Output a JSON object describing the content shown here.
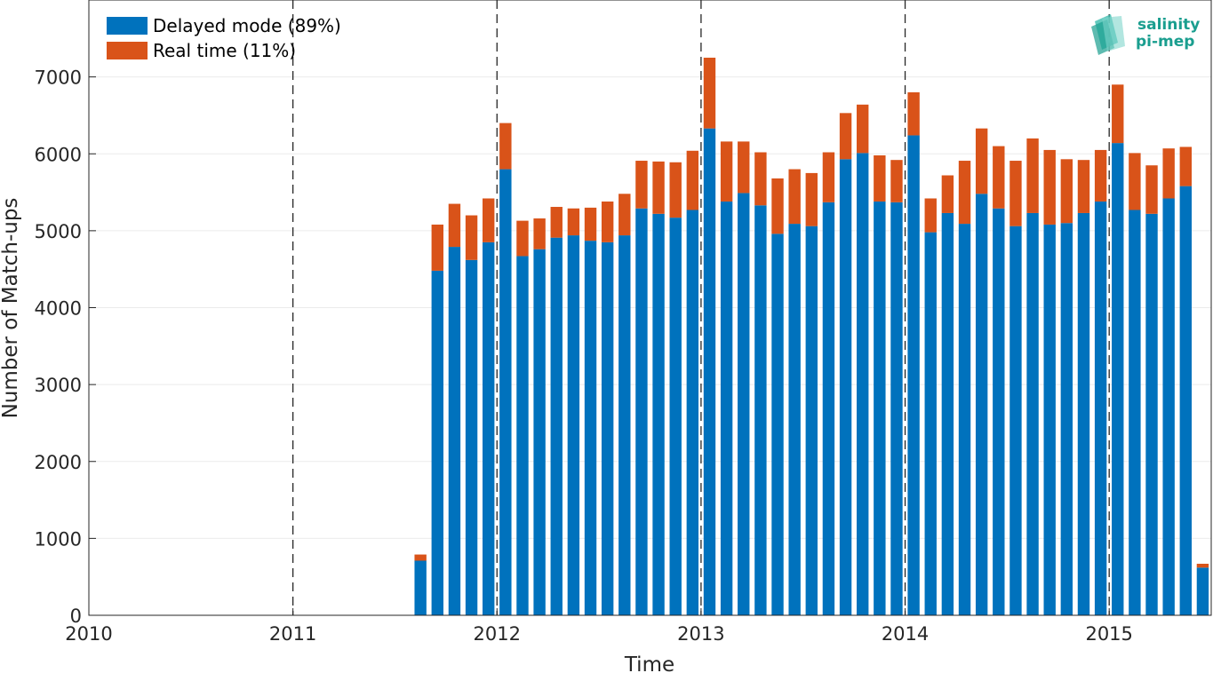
{
  "chart_data": {
    "type": "bar",
    "stacked": true,
    "title": "",
    "xlabel": "Time",
    "ylabel": "Number of Match-ups",
    "xlim": [
      "2010-01",
      "2015-07"
    ],
    "ylim": [
      0,
      8000
    ],
    "x_ticks": [
      "2010",
      "2011",
      "2012",
      "2013",
      "2014",
      "2015"
    ],
    "y_ticks": [
      "0",
      "1000",
      "2000",
      "3000",
      "4000",
      "5000",
      "6000",
      "7000"
    ],
    "grid": true,
    "year_boundaries_dashed": true,
    "legend": {
      "placement": "top-left"
    },
    "months": [
      "2011-08",
      "2011-09",
      "2011-10",
      "2011-11",
      "2011-12",
      "2012-01",
      "2012-02",
      "2012-03",
      "2012-04",
      "2012-05",
      "2012-06",
      "2012-07",
      "2012-08",
      "2012-09",
      "2012-10",
      "2012-11",
      "2012-12",
      "2013-01",
      "2013-02",
      "2013-03",
      "2013-04",
      "2013-05",
      "2013-06",
      "2013-07",
      "2013-08",
      "2013-09",
      "2013-10",
      "2013-11",
      "2013-12",
      "2014-01",
      "2014-02",
      "2014-03",
      "2014-04",
      "2014-05",
      "2014-06",
      "2014-07",
      "2014-08",
      "2014-09",
      "2014-10",
      "2014-11",
      "2014-12",
      "2015-01",
      "2015-02",
      "2015-03",
      "2015-04",
      "2015-05",
      "2015-06"
    ],
    "series": [
      {
        "name": "Delayed mode (89%)",
        "color": "#0072BD",
        "values": [
          710,
          4480,
          4790,
          4620,
          4850,
          5800,
          4670,
          4760,
          4910,
          4940,
          4870,
          4850,
          4940,
          5290,
          5220,
          5170,
          5270,
          6330,
          5380,
          5490,
          5330,
          4960,
          5090,
          5060,
          5370,
          5930,
          6010,
          5380,
          5370,
          6240,
          4980,
          5230,
          5090,
          5480,
          5290,
          5060,
          5230,
          5080,
          5100,
          5230,
          5380,
          6140,
          5270,
          5220,
          5420,
          5580,
          620
        ]
      },
      {
        "name": "Real time (11%)",
        "color": "#D95319",
        "values": [
          80,
          600,
          560,
          580,
          570,
          600,
          460,
          400,
          400,
          350,
          430,
          530,
          540,
          620,
          680,
          720,
          770,
          920,
          780,
          670,
          690,
          720,
          710,
          690,
          650,
          600,
          630,
          600,
          550,
          560,
          440,
          490,
          820,
          850,
          810,
          850,
          970,
          970,
          830,
          690,
          670,
          760,
          740,
          630,
          650,
          510,
          50
        ]
      }
    ]
  },
  "logo": {
    "line1": "salinity",
    "line2": "pi-mep"
  },
  "colors": {
    "axis": "#262626",
    "grid": "#ebebeb",
    "logo_teal": "#1a9e8f"
  }
}
